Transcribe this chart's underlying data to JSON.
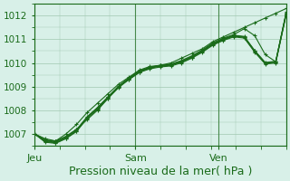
{
  "bg_color": "#d8f0e8",
  "grid_color": "#a0c8b0",
  "line_color": "#1a6b1a",
  "marker_color": "#1a6b1a",
  "xlabel": "Pression niveau de la mer( hPa )",
  "xlabel_fontsize": 9,
  "tick_label_fontsize": 7.5,
  "day_label_fontsize": 8,
  "ylim": [
    1006.5,
    1012.5
  ],
  "yticks": [
    1007,
    1008,
    1009,
    1010,
    1011,
    1012
  ],
  "day_labels": [
    "Jeu",
    "Sam",
    "Ven"
  ],
  "day_positions": [
    0.0,
    0.4,
    0.73
  ],
  "series": [
    [
      1007.0,
      1006.8,
      1006.7,
      1006.9,
      1007.2,
      1007.6,
      1008.0,
      1008.5,
      1009.0,
      1009.3,
      1009.6,
      1009.8,
      1009.9,
      1010.0,
      1010.2,
      1010.4,
      1010.6,
      1010.9,
      1011.1,
      1011.3,
      1011.5,
      1011.7,
      1011.9,
      1012.1,
      1012.3
    ],
    [
      1007.0,
      1006.75,
      1006.7,
      1007.0,
      1007.4,
      1007.9,
      1008.3,
      1008.7,
      1009.1,
      1009.4,
      1009.7,
      1009.85,
      1009.9,
      1009.95,
      1010.1,
      1010.3,
      1010.55,
      1010.85,
      1011.05,
      1011.2,
      1011.45,
      1011.15,
      1010.35,
      1010.05,
      1012.15
    ],
    [
      1007.0,
      1006.7,
      1006.65,
      1006.85,
      1007.15,
      1007.7,
      1008.1,
      1008.55,
      1009.0,
      1009.35,
      1009.65,
      1009.8,
      1009.88,
      1009.92,
      1010.05,
      1010.25,
      1010.5,
      1010.8,
      1011.0,
      1011.15,
      1011.1,
      1010.5,
      1010.0,
      1010.05,
      1012.1
    ],
    [
      1007.0,
      1006.72,
      1006.68,
      1006.88,
      1007.18,
      1007.72,
      1008.12,
      1008.57,
      1009.02,
      1009.37,
      1009.67,
      1009.82,
      1009.9,
      1009.94,
      1010.07,
      1010.27,
      1010.52,
      1010.82,
      1011.02,
      1011.17,
      1011.12,
      1010.52,
      1010.02,
      1010.07,
      1012.12
    ],
    [
      1007.0,
      1006.68,
      1006.62,
      1006.82,
      1007.12,
      1007.68,
      1008.08,
      1008.53,
      1008.98,
      1009.33,
      1009.63,
      1009.78,
      1009.86,
      1009.9,
      1010.03,
      1010.23,
      1010.48,
      1010.78,
      1010.98,
      1011.13,
      1011.08,
      1010.48,
      1009.98,
      1010.03,
      1012.08
    ],
    [
      1007.0,
      1006.65,
      1006.6,
      1006.8,
      1007.1,
      1007.65,
      1008.05,
      1008.5,
      1008.95,
      1009.3,
      1009.6,
      1009.75,
      1009.83,
      1009.87,
      1010.0,
      1010.2,
      1010.45,
      1010.75,
      1010.95,
      1011.1,
      1011.05,
      1010.45,
      1009.95,
      1010.0,
      1012.05
    ]
  ]
}
